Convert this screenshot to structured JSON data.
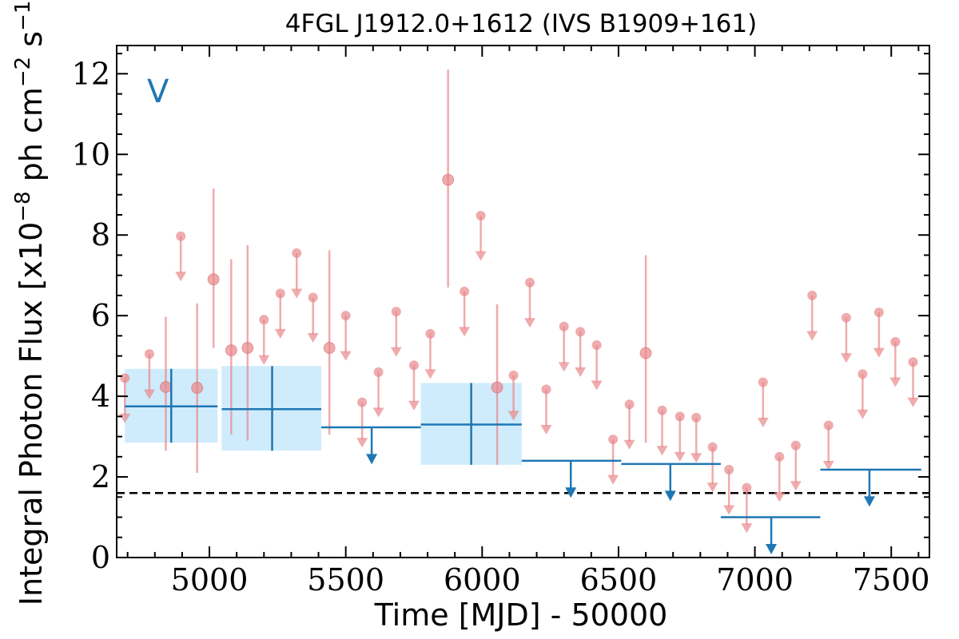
{
  "chart_data": {
    "type": "scatter",
    "title": "4FGL J1912.0+1612 (IVS B1909+161)",
    "panel_label": "V",
    "xlabel": "Time [MJD] - 50000",
    "ylabel_parts": [
      "Integral Photon Flux [x10",
      "−8",
      " ph cm",
      "−2",
      " s",
      "−1",
      "]"
    ],
    "xlim": [
      4660,
      7640
    ],
    "ylim": [
      0,
      12.7
    ],
    "x_ticks": [
      5000,
      5500,
      6000,
      6500,
      7000,
      7500
    ],
    "x_tick_labels": [
      "5000",
      "5500",
      "6000",
      "6500",
      "7000",
      "7500"
    ],
    "y_ticks": [
      0,
      2,
      4,
      6,
      8,
      10,
      12
    ],
    "y_tick_labels": [
      "0",
      "2",
      "4",
      "6",
      "8",
      "10",
      "12"
    ],
    "reference_line": {
      "y": 1.6,
      "style": "dashed"
    },
    "colors": {
      "fine": "#e8878a",
      "coarse": "#1f77b4",
      "band": "#bfe6fb",
      "reference": "#000000"
    },
    "series": [
      {
        "role": "fine-bins-detections",
        "points": [
          {
            "x": 4840,
            "y": 4.23,
            "lo": 2.65,
            "hi": 5.97
          },
          {
            "x": 4955,
            "y": 4.21,
            "lo": 2.1,
            "hi": 6.3
          },
          {
            "x": 5015,
            "y": 6.9,
            "lo": 5.2,
            "hi": 9.15
          },
          {
            "x": 5080,
            "y": 5.14,
            "lo": 3.05,
            "hi": 7.4
          },
          {
            "x": 5140,
            "y": 5.2,
            "lo": 2.9,
            "hi": 7.75
          },
          {
            "x": 5440,
            "y": 5.2,
            "lo": 3.05,
            "hi": 7.62
          },
          {
            "x": 5875,
            "y": 9.37,
            "lo": 6.7,
            "hi": 12.1
          },
          {
            "x": 6055,
            "y": 4.22,
            "lo": 2.3,
            "hi": 6.28
          },
          {
            "x": 6600,
            "y": 5.07,
            "lo": 2.85,
            "hi": 7.5
          }
        ]
      },
      {
        "role": "fine-bins-upper-limits",
        "points": [
          {
            "x": 4690,
            "y": 4.45
          },
          {
            "x": 4780,
            "y": 5.05
          },
          {
            "x": 4895,
            "y": 7.97
          },
          {
            "x": 5200,
            "y": 5.9
          },
          {
            "x": 5260,
            "y": 6.55
          },
          {
            "x": 5320,
            "y": 7.55
          },
          {
            "x": 5380,
            "y": 6.45
          },
          {
            "x": 5500,
            "y": 6.0
          },
          {
            "x": 5560,
            "y": 3.85
          },
          {
            "x": 5620,
            "y": 4.6
          },
          {
            "x": 5685,
            "y": 6.1
          },
          {
            "x": 5750,
            "y": 4.77
          },
          {
            "x": 5810,
            "y": 5.55
          },
          {
            "x": 5935,
            "y": 6.6
          },
          {
            "x": 5995,
            "y": 8.48
          },
          {
            "x": 6115,
            "y": 4.52
          },
          {
            "x": 6175,
            "y": 6.82
          },
          {
            "x": 6235,
            "y": 4.17
          },
          {
            "x": 6300,
            "y": 5.73
          },
          {
            "x": 6360,
            "y": 5.6
          },
          {
            "x": 6420,
            "y": 5.27
          },
          {
            "x": 6480,
            "y": 2.93
          },
          {
            "x": 6540,
            "y": 3.8
          },
          {
            "x": 6660,
            "y": 3.65
          },
          {
            "x": 6725,
            "y": 3.5
          },
          {
            "x": 6785,
            "y": 3.47
          },
          {
            "x": 6845,
            "y": 2.74
          },
          {
            "x": 6905,
            "y": 2.18
          },
          {
            "x": 6970,
            "y": 1.73
          },
          {
            "x": 7030,
            "y": 4.35
          },
          {
            "x": 7090,
            "y": 2.5
          },
          {
            "x": 7150,
            "y": 2.78
          },
          {
            "x": 7210,
            "y": 6.5
          },
          {
            "x": 7270,
            "y": 3.28
          },
          {
            "x": 7335,
            "y": 5.95
          },
          {
            "x": 7395,
            "y": 4.55
          },
          {
            "x": 7455,
            "y": 6.08
          },
          {
            "x": 7515,
            "y": 5.35
          },
          {
            "x": 7580,
            "y": 4.85
          }
        ]
      },
      {
        "role": "coarse-bins-detections",
        "points": [
          {
            "x": 4860,
            "x0": 4690,
            "x1": 5030,
            "y": 3.75,
            "lo": 2.85,
            "hi": 4.68
          },
          {
            "x": 5230,
            "x0": 5045,
            "x1": 5410,
            "y": 3.68,
            "lo": 2.65,
            "hi": 4.75
          },
          {
            "x": 5960,
            "x0": 5775,
            "x1": 6145,
            "y": 3.3,
            "lo": 2.3,
            "hi": 4.33
          }
        ]
      },
      {
        "role": "coarse-bins-upper-limits",
        "points": [
          {
            "x": 5595,
            "x0": 5410,
            "x1": 5775,
            "y": 3.23
          },
          {
            "x": 6325,
            "x0": 6145,
            "x1": 6510,
            "y": 2.4
          },
          {
            "x": 6690,
            "x0": 6510,
            "x1": 6875,
            "y": 2.32
          },
          {
            "x": 7060,
            "x0": 6875,
            "x1": 7240,
            "y": 1.0
          },
          {
            "x": 7420,
            "x0": 7240,
            "x1": 7610,
            "y": 2.18
          }
        ]
      }
    ]
  }
}
